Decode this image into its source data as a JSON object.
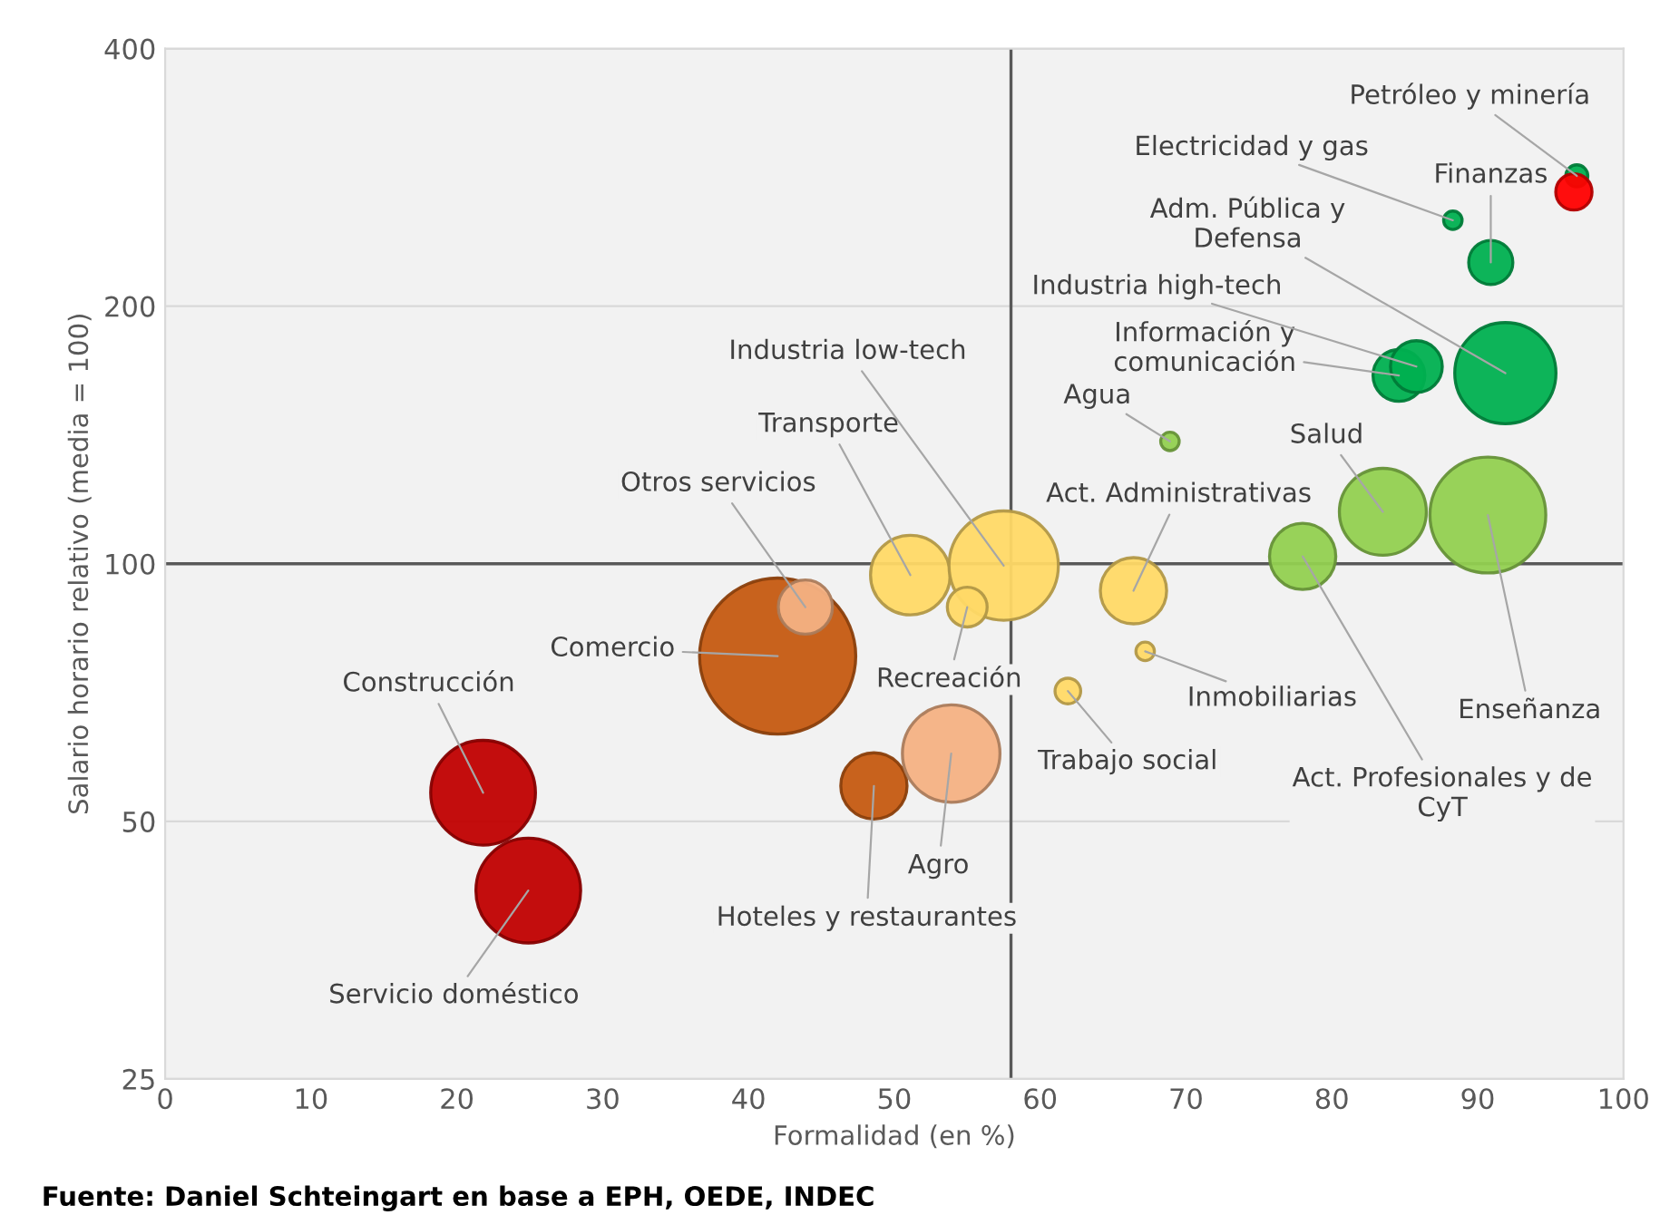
{
  "chart_data": {
    "type": "bubble",
    "xlabel": "Formalidad (en %)",
    "ylabel": "Salario horario relativo (media = 100)",
    "xlim": [
      0,
      100
    ],
    "xticks": [
      0,
      10,
      20,
      30,
      40,
      50,
      60,
      70,
      80,
      90,
      100
    ],
    "ylim": [
      25,
      400
    ],
    "yticks": [
      25,
      50,
      100,
      200,
      400
    ],
    "log": "y",
    "grid": "y",
    "ref_lines": [
      {
        "axis": "x",
        "value": 58,
        "color": "#595959"
      },
      {
        "axis": "y",
        "value": 100,
        "color": "#595959"
      }
    ],
    "series": [
      {
        "x": [
          21.8,
          24.9,
          42.0,
          43.9,
          48.6,
          53.9,
          51.1,
          57.5,
          55.0,
          66.4,
          67.2,
          61.9,
          68.9,
          78.0,
          83.5,
          90.7,
          84.6,
          85.8,
          91.9,
          90.9,
          88.3,
          96.8,
          96.6
        ],
        "values": [
          54,
          41.5,
          78,
          89,
          55,
          60,
          97,
          99.5,
          89,
          93,
          79,
          71,
          139,
          102,
          115,
          114,
          166,
          170,
          167,
          225,
          252,
          284,
          272
        ],
        "sizes": [
          0.45,
          0.45,
          1,
          0.12,
          0.18,
          0.39,
          0.26,
          0.49,
          0.065,
          0.18,
          0.014,
          0.027,
          0.014,
          0.18,
          0.31,
          0.55,
          0.11,
          0.11,
          0.42,
          0.08,
          0.014,
          0.02,
          0.054
        ],
        "colors": [
          "#c00000",
          "#c00000",
          "#c55a11",
          "#f4b183",
          "#c55a11",
          "#f4b183",
          "#ffd966",
          "#ffd966",
          "#ffd966",
          "#ffd966",
          "#ffd966",
          "#ffd966",
          "#92d050",
          "#92d050",
          "#92d050",
          "#92d050",
          "#00b050",
          "#00b050",
          "#00b050",
          "#00b050",
          "#00b050",
          "#00b050",
          "#ff0000"
        ]
      }
    ],
    "annotations": [
      {
        "text": "Construcción",
        "x": 21.8,
        "y": 54
      },
      {
        "text": "Servicio doméstico",
        "x": 24.9,
        "y": 41.5
      },
      {
        "text": "Comercio",
        "x": 42.0,
        "y": 78
      },
      {
        "text": "Otros servicios",
        "x": 43.9,
        "y": 89
      },
      {
        "text": "Hoteles y restaurantes",
        "x": 48.6,
        "y": 55
      },
      {
        "text": "Agro",
        "x": 53.9,
        "y": 60
      },
      {
        "text": "Transporte",
        "x": 51.1,
        "y": 97
      },
      {
        "text": "Industria low-tech",
        "x": 57.5,
        "y": 99.5
      },
      {
        "text": "Recreación",
        "x": 55.0,
        "y": 89
      },
      {
        "text": "Act. Administrativas",
        "x": 66.4,
        "y": 93
      },
      {
        "text": "Inmobiliarias",
        "x": 67.2,
        "y": 79
      },
      {
        "text": "Trabajo social",
        "x": 61.9,
        "y": 71
      },
      {
        "text": "Agua",
        "x": 68.9,
        "y": 139
      },
      {
        "text": "Act. Profesionales y de\nCyT",
        "x": 78.0,
        "y": 102
      },
      {
        "text": "Salud",
        "x": 83.5,
        "y": 115
      },
      {
        "text": "Enseñanza",
        "x": 90.7,
        "y": 114
      },
      {
        "text": "Información y\ncomunicación",
        "x": 84.6,
        "y": 166
      },
      {
        "text": "Industria high-tech",
        "x": 85.8,
        "y": 170
      },
      {
        "text": "Adm. Pública y\nDefensa",
        "x": 91.9,
        "y": 167
      },
      {
        "text": "Finanzas",
        "x": 90.9,
        "y": 225
      },
      {
        "text": "Electricidad y gas",
        "x": 88.3,
        "y": 252
      },
      {
        "text": "Petróleo y minería",
        "x": 96.8,
        "y": 284
      },
      "Fuente: Daniel Schteingart en base a EPH, OEDE, INDEC"
    ]
  }
}
